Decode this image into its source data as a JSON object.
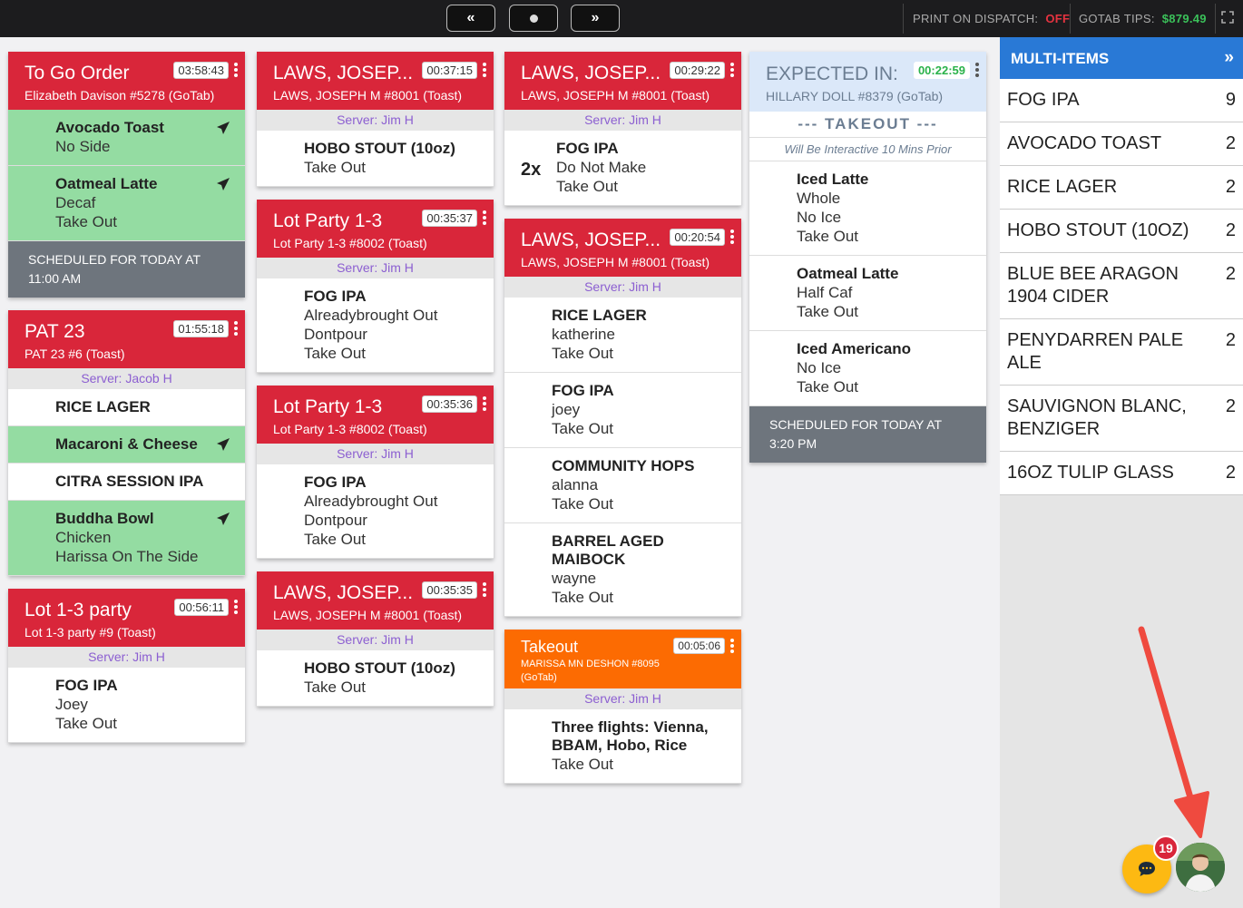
{
  "topbar": {
    "prev_label": "«",
    "next_label": "»",
    "print_label": "PRINT ON DISPATCH:",
    "print_value": "OFF",
    "tips_label": "GOTAB TIPS:",
    "tips_value": "$879.49"
  },
  "cards": {
    "c1": {
      "title": "To Go Order",
      "sub": "Elizabeth Davison #5278 (GoTab)",
      "timer": "03:58:43",
      "items": [
        {
          "name": "Avocado Toast",
          "mods": [
            "No Side"
          ]
        },
        {
          "name": "Oatmeal Latte",
          "mods": [
            "Decaf",
            "Take Out"
          ]
        }
      ],
      "sched": "SCHEDULED FOR TODAY AT 11:00 AM"
    },
    "c2": {
      "title": "PAT 23",
      "sub": "PAT 23 #6 (Toast)",
      "timer": "01:55:18",
      "server": "Server: Jacob H",
      "items": [
        {
          "name": "RICE LAGER"
        },
        {
          "name": "Macaroni & Cheese"
        },
        {
          "name": "CITRA SESSION IPA"
        },
        {
          "name": "Buddha Bowl",
          "mods": [
            "Chicken",
            "Harissa On The Side"
          ]
        }
      ]
    },
    "c3": {
      "title": "Lot 1-3 party",
      "sub": "Lot 1-3 party #9 (Toast)",
      "timer": "00:56:11",
      "server": "Server: Jim H",
      "items": [
        {
          "name": "FOG IPA",
          "mods": [
            "Joey",
            "Take Out"
          ]
        }
      ]
    },
    "c4": {
      "title": "LAWS, JOSEP...",
      "sub": "LAWS, JOSEPH M #8001 (Toast)",
      "timer": "00:37:15",
      "server": "Server: Jim H",
      "items": [
        {
          "name": "HOBO STOUT (10oz)",
          "mods": [
            "Take Out"
          ]
        }
      ]
    },
    "c5": {
      "title": "Lot Party 1-3",
      "sub": "Lot Party 1-3 #8002 (Toast)",
      "timer": "00:35:37",
      "server": "Server: Jim H",
      "items": [
        {
          "name": "FOG IPA",
          "mods": [
            "Alreadybrought Out",
            "Dontpour",
            "Take Out"
          ]
        }
      ]
    },
    "c6": {
      "title": "Lot Party 1-3",
      "sub": "Lot Party 1-3 #8002 (Toast)",
      "timer": "00:35:36",
      "server": "Server: Jim H",
      "items": [
        {
          "name": "FOG IPA",
          "mods": [
            "Alreadybrought Out",
            "Dontpour",
            "Take Out"
          ]
        }
      ]
    },
    "c7": {
      "title": "LAWS, JOSEP...",
      "sub": "LAWS, JOSEPH M #8001 (Toast)",
      "timer": "00:35:35",
      "server": "Server: Jim H",
      "items": [
        {
          "name": "HOBO STOUT (10oz)",
          "mods": [
            "Take Out"
          ]
        }
      ]
    },
    "c8": {
      "title": "LAWS, JOSEP...",
      "sub": "LAWS, JOSEPH M #8001 (Toast)",
      "timer": "00:29:22",
      "server": "Server: Jim H",
      "items": [
        {
          "qty": "2x",
          "name": "FOG IPA",
          "mods": [
            "Do Not Make",
            "Take Out"
          ]
        }
      ]
    },
    "c9": {
      "title": "LAWS, JOSEP...",
      "sub": "LAWS, JOSEPH M #8001 (Toast)",
      "timer": "00:20:54",
      "server": "Server: Jim H",
      "items": [
        {
          "name": "RICE LAGER",
          "mods": [
            "katherine",
            "Take Out"
          ]
        },
        {
          "name": "FOG IPA",
          "mods": [
            "joey",
            "Take Out"
          ]
        },
        {
          "name": "COMMUNITY HOPS",
          "mods": [
            "alanna",
            "Take Out"
          ]
        },
        {
          "name": "BARREL AGED MAIBOCK",
          "mods": [
            "wayne",
            "Take Out"
          ]
        }
      ]
    },
    "c10": {
      "title": "Takeout",
      "sub": "MARISSA MN DESHON #8095 (GoTab)",
      "timer": "00:05:06",
      "server": "Server: Jim H",
      "items": [
        {
          "name": "Three flights: Vienna, BBAM, Hobo, Rice",
          "mods": [
            "Take Out"
          ]
        }
      ]
    },
    "c11": {
      "title": "EXPECTED IN:",
      "sub": "HILLARY DOLL #8379 (GoTab)",
      "timer": "00:22:59",
      "takeout": "--- TAKEOUT ---",
      "interactive": "Will Be Interactive 10 Mins Prior",
      "items": [
        {
          "name": "Iced Latte",
          "mods": [
            "Whole",
            "No Ice",
            "Take Out"
          ]
        },
        {
          "name": "Oatmeal Latte",
          "mods": [
            "Half Caf",
            "Take Out"
          ]
        },
        {
          "name": "Iced Americano",
          "mods": [
            "No Ice",
            "Take Out"
          ]
        }
      ],
      "sched": "SCHEDULED FOR TODAY AT 3:20 PM"
    }
  },
  "sidebar": {
    "title": "MULTI-ITEMS",
    "rows": [
      {
        "name": "FOG IPA",
        "count": "9"
      },
      {
        "name": "AVOCADO TOAST",
        "count": "2"
      },
      {
        "name": "RICE LAGER",
        "count": "2"
      },
      {
        "name": "HOBO STOUT (10OZ)",
        "count": "2"
      },
      {
        "name": "BLUE BEE ARAGON 1904 CIDER",
        "count": "2"
      },
      {
        "name": "PENYDARREN PALE ALE",
        "count": "2"
      },
      {
        "name": "SAUVIGNON BLANC, BENZIGER",
        "count": "2"
      },
      {
        "name": "16OZ TULIP GLASS",
        "count": "2"
      }
    ]
  },
  "chat": {
    "badge": "19"
  },
  "colors": {
    "red": "#d9263a",
    "green": "#94dca2",
    "orange": "#fc6b02",
    "blue": "#2979d6",
    "yellow": "#fdb912"
  }
}
